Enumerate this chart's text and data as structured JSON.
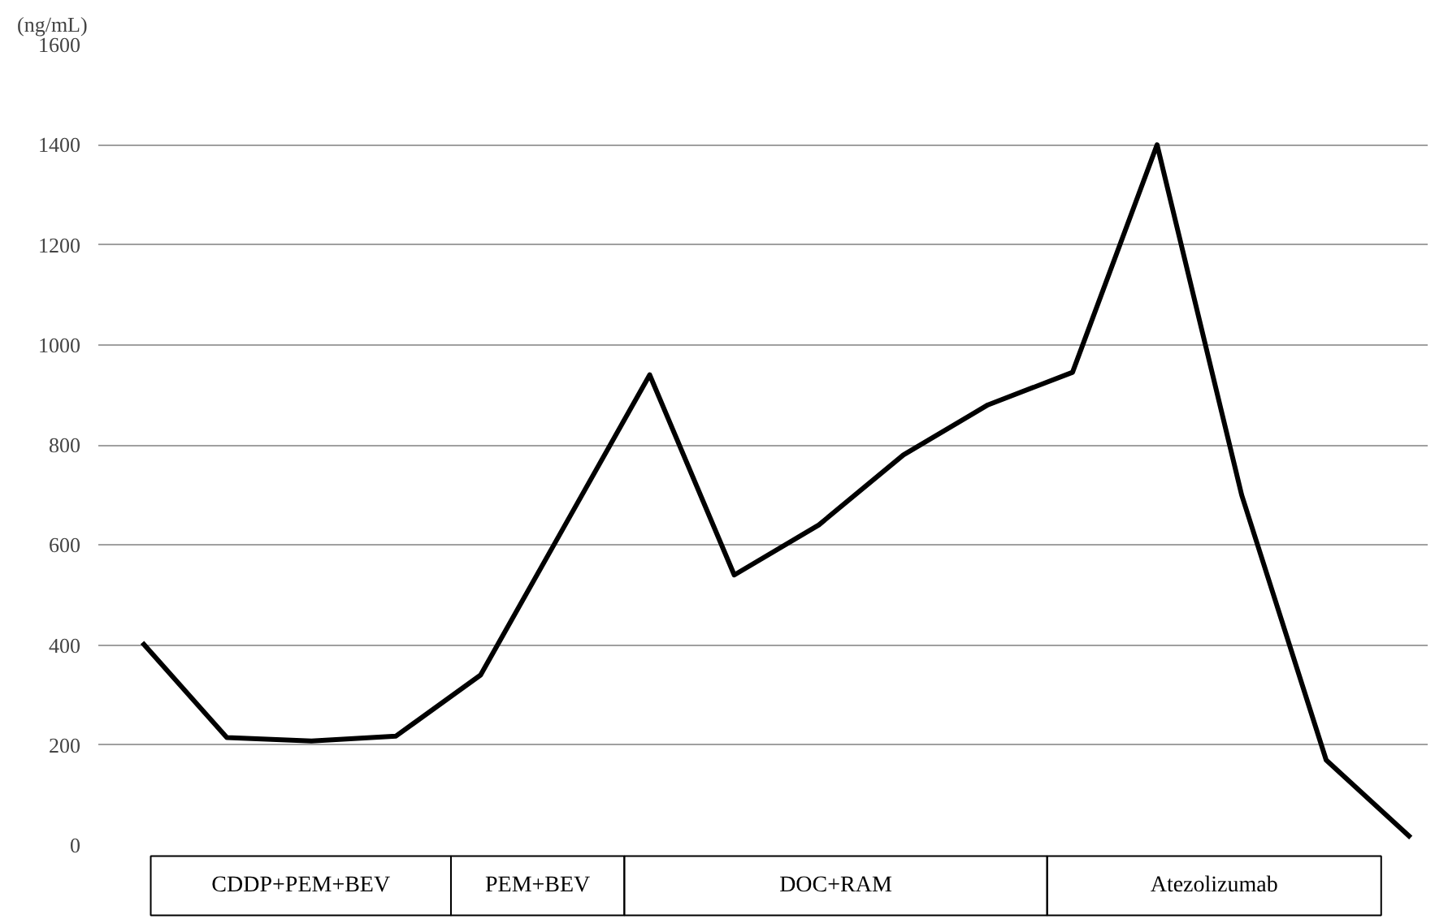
{
  "chart_data": {
    "type": "line",
    "title": "(ng/mL)",
    "categories": [
      null,
      null,
      null,
      null,
      null,
      null,
      null,
      null,
      null,
      null,
      null,
      null,
      null,
      null,
      null,
      null
    ],
    "series": [
      {
        "color": "#000000",
        "values": [
          405,
          215,
          208,
          218,
          340,
          640,
          940,
          540,
          640,
          780,
          880,
          945,
          1400,
          700,
          170,
          15
        ]
      }
    ],
    "ylim": [
      0,
      1600
    ],
    "yticks": [
      0,
      200,
      400,
      600,
      800,
      1000,
      1200,
      1400,
      1600
    ],
    "grid": "y",
    "tick_labels": "y",
    "marker": "none",
    "line_style": "solid",
    "annotations": [
      "CDDP+PEM+BEV",
      "PEM+BEV",
      "DOC+RAM",
      "Atezolizumab"
    ]
  }
}
